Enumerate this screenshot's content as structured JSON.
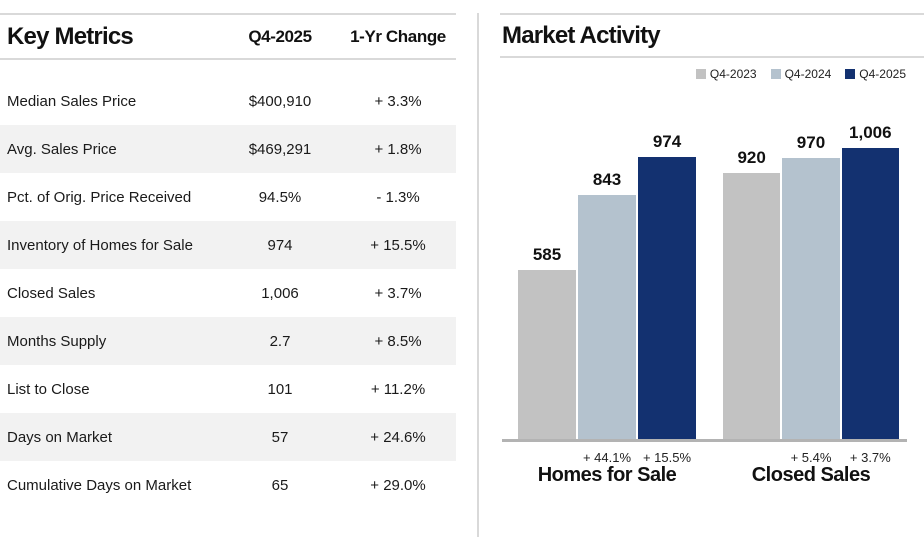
{
  "table": {
    "title": "Key Metrics",
    "col_period": "Q4-2025",
    "col_change": "1-Yr Change",
    "rows": [
      {
        "metric": "Median Sales Price",
        "value": "$400,910",
        "change": "+ 3.3%"
      },
      {
        "metric": "Avg. Sales Price",
        "value": "$469,291",
        "change": "+ 1.8%"
      },
      {
        "metric": "Pct. of Orig. Price Received",
        "value": "94.5%",
        "change": "- 1.3%"
      },
      {
        "metric": "Inventory of Homes for Sale",
        "value": "974",
        "change": "+ 15.5%"
      },
      {
        "metric": "Closed Sales",
        "value": "1,006",
        "change": "+ 3.7%"
      },
      {
        "metric": "Months Supply",
        "value": "2.7",
        "change": "+ 8.5%"
      },
      {
        "metric": "List to Close",
        "value": "101",
        "change": "+ 11.2%"
      },
      {
        "metric": "Days on Market",
        "value": "57",
        "change": "+ 24.6%"
      },
      {
        "metric": "Cumulative Days on Market",
        "value": "65",
        "change": "+ 29.0%"
      }
    ]
  },
  "chart": {
    "title": "Market Activity"
  },
  "colors": {
    "q4_2023": "#c2c2c2",
    "q4_2024": "#b4c2ce",
    "q4_2025": "#133170",
    "baseline": "#b3b3b3",
    "rule": "#d9d9d9",
    "row_alt": "#f2f2f2"
  },
  "chart_data": {
    "type": "bar",
    "title": "Market Activity",
    "categories": [
      "Homes for Sale",
      "Closed Sales"
    ],
    "series": [
      {
        "name": "Q4-2023",
        "color": "#c2c2c2",
        "values": [
          585,
          920
        ]
      },
      {
        "name": "Q4-2024",
        "color": "#b4c2ce",
        "values": [
          843,
          970
        ]
      },
      {
        "name": "Q4-2025",
        "color": "#133170",
        "values": [
          974,
          1006
        ]
      }
    ],
    "value_labels": [
      [
        "585",
        "843",
        "974"
      ],
      [
        "920",
        "970",
        "1,006"
      ]
    ],
    "change_labels": [
      [
        "",
        "+ 44.1%",
        "+ 15.5%"
      ],
      [
        "",
        "+ 5.4%",
        "+ 3.7%"
      ]
    ],
    "legend_position": "top-right",
    "grid": false,
    "axes_visible": false,
    "baseline_only": true
  }
}
